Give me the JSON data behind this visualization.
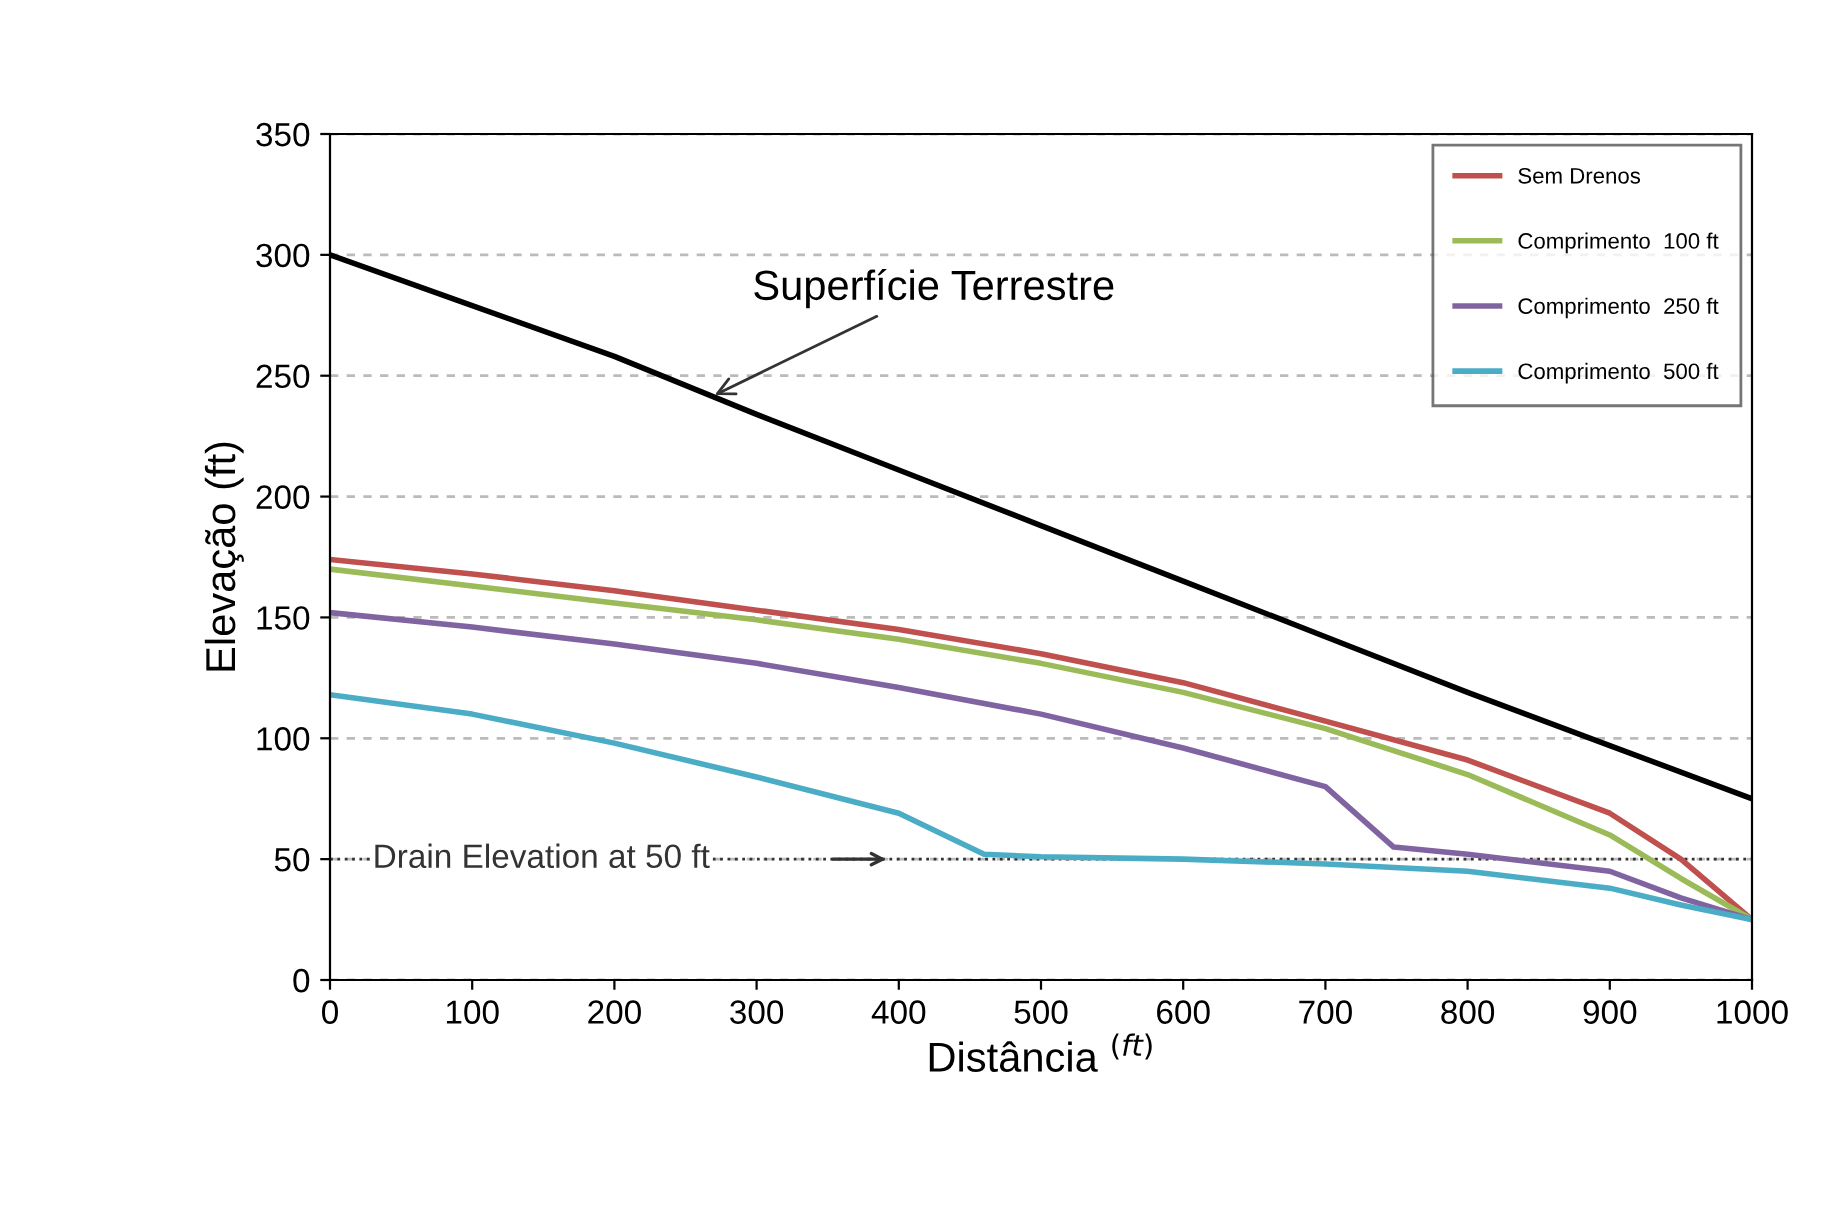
{
  "chart_data": {
    "type": "line",
    "xlabel": "Distância $^{(ft)}$",
    "ylabel": "Elevação (ft)",
    "xlim": [
      0,
      1000
    ],
    "xticks": [
      0,
      100,
      200,
      300,
      400,
      500,
      600,
      700,
      800,
      900,
      1000
    ],
    "ylim": [
      0,
      350
    ],
    "yticks": [
      0,
      50,
      100,
      150,
      200,
      250,
      300,
      350
    ],
    "grid": "y",
    "legend": "top right",
    "line_style": "solid",
    "marker": "none",
    "series": [
      {
        "color": "#000000",
        "x": [
          0,
          100,
          200,
          300,
          400,
          500,
          600,
          700,
          800,
          900,
          1000
        ],
        "values": [
          300,
          279,
          258,
          234,
          211,
          188,
          165,
          142,
          119,
          97,
          75
        ]
      },
      {
        "name": "Sem Drenos",
        "color": "#c0504d",
        "x": [
          0,
          100,
          200,
          300,
          400,
          500,
          600,
          682,
          800,
          900,
          950,
          1000
        ],
        "values": [
          174,
          168,
          161,
          153,
          145,
          135,
          123,
          110,
          91,
          69,
          50,
          25
        ]
      },
      {
        "name": "Comprimento  100 ft",
        "color": "#9bbb59",
        "x": [
          0,
          100,
          200,
          300,
          400,
          500,
          600,
          700,
          800,
          900,
          950,
          1000
        ],
        "values": [
          170,
          163,
          156,
          149,
          141,
          131,
          119,
          104,
          85,
          60,
          42,
          25
        ]
      },
      {
        "name": "Comprimento  250 ft",
        "color": "#8064a2",
        "x": [
          0,
          100,
          200,
          300,
          400,
          500,
          600,
          700,
          748,
          800,
          900,
          950,
          1000
        ],
        "values": [
          152,
          146,
          139,
          131,
          121,
          110,
          96,
          80,
          55,
          52,
          45,
          34,
          25
        ]
      },
      {
        "name": "Comprimento  500 ft",
        "color": "#4bacc6",
        "x": [
          0,
          100,
          200,
          300,
          400,
          460,
          500,
          600,
          700,
          800,
          900,
          950,
          1000
        ],
        "values": [
          118,
          110,
          98,
          84,
          69,
          52,
          51,
          50,
          48,
          45,
          38,
          31,
          25
        ]
      }
    ],
    "ref_lines": [
      {
        "axis": "y",
        "value": 50,
        "label": "Drain Elevation at 50 ft",
        "color": "#333333",
        "line_style": "dotted"
      }
    ],
    "annotations": [
      {
        "text": "Superfície Terrestre",
        "x": 267,
        "y": 241
      }
    ]
  }
}
